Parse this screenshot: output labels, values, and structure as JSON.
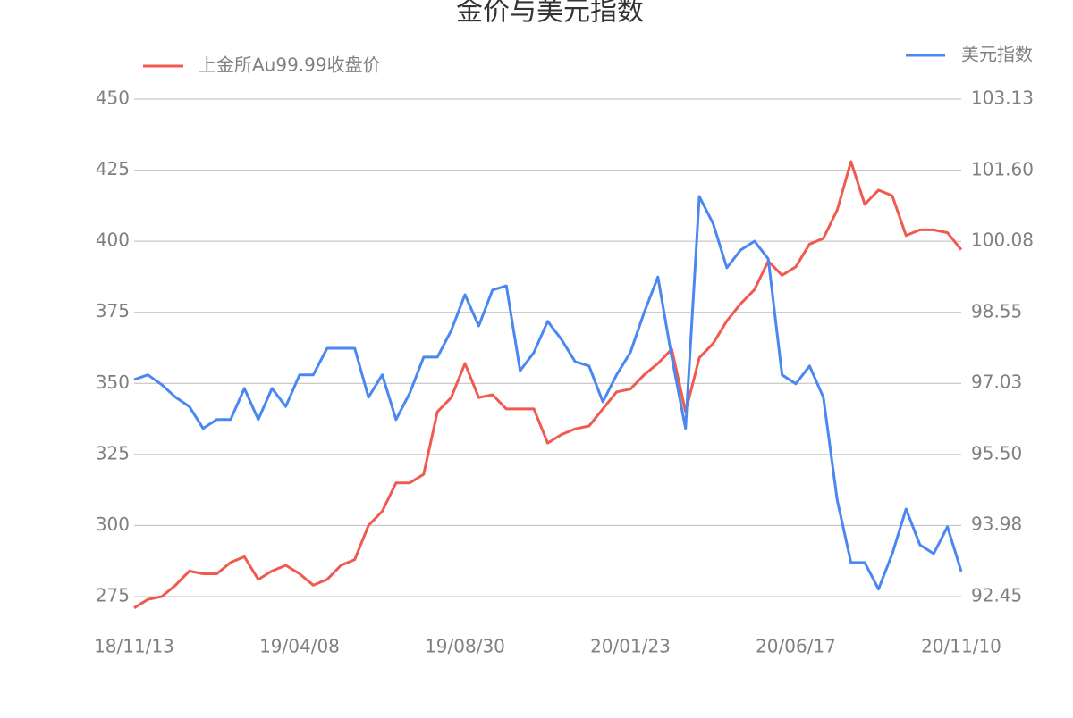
{
  "chart_data": {
    "type": "line",
    "title": "金价与美元指数",
    "categories": [
      "18/11/13",
      null,
      null,
      null,
      null,
      null,
      null,
      null,
      null,
      null,
      null,
      null,
      "19/04/08",
      null,
      null,
      null,
      null,
      null,
      null,
      null,
      null,
      null,
      null,
      null,
      "19/08/30",
      null,
      null,
      null,
      null,
      null,
      null,
      null,
      null,
      null,
      null,
      null,
      "20/01/23",
      null,
      null,
      null,
      null,
      null,
      null,
      null,
      null,
      null,
      null,
      null,
      "20/06/17",
      null,
      null,
      null,
      null,
      null,
      null,
      null,
      null,
      null,
      null,
      null,
      "20/11/10"
    ],
    "series": [
      {
        "name": "上金所Au99.99收盘价",
        "color": "#f05a50",
        "axis": "y",
        "values": [
          271,
          274,
          275,
          279,
          284,
          283,
          283,
          287,
          289,
          281,
          284,
          286,
          283,
          279,
          281,
          286,
          288,
          300,
          305,
          315,
          315,
          318,
          340,
          345,
          357,
          345,
          346,
          341,
          341,
          341,
          329,
          332,
          334,
          335,
          341,
          347,
          348,
          353,
          357,
          362,
          340,
          359,
          364,
          372,
          378,
          383,
          393,
          388,
          391,
          399,
          401,
          411,
          428,
          413,
          418,
          416,
          402,
          404,
          404,
          403,
          397
        ]
      },
      {
        "name": "美元指数",
        "color": "#4b87f0",
        "axis": "y2",
        "values": [
          97.11,
          97.21,
          97.0,
          96.73,
          96.53,
          96.06,
          96.25,
          96.25,
          96.92,
          96.25,
          96.92,
          96.53,
          97.21,
          97.21,
          97.78,
          97.78,
          97.78,
          96.73,
          97.21,
          96.25,
          96.82,
          97.59,
          97.59,
          98.16,
          98.93,
          98.26,
          99.03,
          99.12,
          97.3,
          97.69,
          98.36,
          97.97,
          97.49,
          97.4,
          96.63,
          97.21,
          97.69,
          98.55,
          99.31,
          97.59,
          96.06,
          101.04,
          100.46,
          99.51,
          99.89,
          100.08,
          99.7,
          97.21,
          97.02,
          97.4,
          96.73,
          94.52,
          93.18,
          93.18,
          92.61,
          93.37,
          94.33,
          93.56,
          93.37,
          93.95,
          92.99
        ]
      }
    ],
    "ylim": [
      275,
      450
    ],
    "yticks": [
      275,
      300,
      325,
      350,
      375,
      400,
      425,
      450
    ],
    "y2lim": [
      92.45,
      103.13
    ],
    "y2ticks": [
      92.45,
      93.98,
      {
        "value": 95.5,
        "label": "95.50"
      },
      97.03,
      98.55,
      100.08,
      {
        "value": 101.6,
        "label": "101.60"
      },
      103.13
    ],
    "grid": true
  }
}
